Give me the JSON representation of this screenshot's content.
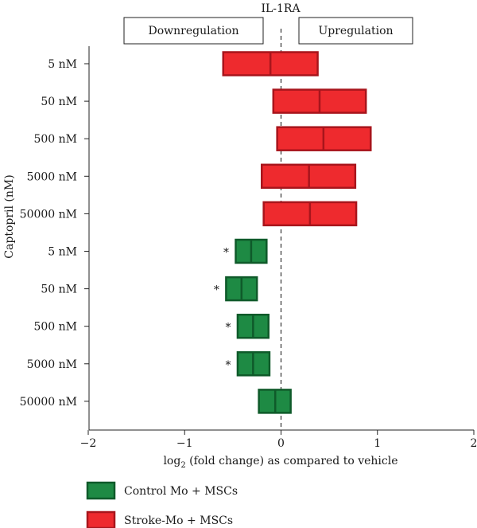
{
  "chart_data": {
    "type": "floating-bar",
    "title": "IL-1RA",
    "xlabel_prefix": "log",
    "xlabel_sub": "2",
    "xlabel_suffix": " (fold change) as compared to vehicle",
    "ylabel": "Captopril (nM)",
    "xlim": [
      -2,
      2
    ],
    "xticks": [
      {
        "value": -2,
        "label": "−2"
      },
      {
        "value": -1,
        "label": "−1"
      },
      {
        "value": 0,
        "label": "0"
      },
      {
        "value": 1,
        "label": "1"
      },
      {
        "value": 2,
        "label": "2"
      }
    ],
    "reference_line": 0,
    "annotation_boxes": [
      {
        "label": "Downregulation",
        "side": "left"
      },
      {
        "label": "Upregulation",
        "side": "right"
      }
    ],
    "colors": {
      "Stroke-Mo + MSCs": {
        "fill": "#ee2a2e",
        "stroke": "#a8151c"
      },
      "Control Mo + MSCs": {
        "fill": "#1e8a44",
        "stroke": "#0f5a2a"
      }
    },
    "rows": [
      {
        "label": "5 nM",
        "series": "Stroke-Mo + MSCs",
        "low": -0.6,
        "mid": -0.11,
        "high": 0.38,
        "significant": false
      },
      {
        "label": "50 nM",
        "series": "Stroke-Mo + MSCs",
        "low": -0.08,
        "mid": 0.4,
        "high": 0.88,
        "significant": false
      },
      {
        "label": "500 nM",
        "series": "Stroke-Mo + MSCs",
        "low": -0.04,
        "mid": 0.44,
        "high": 0.93,
        "significant": false
      },
      {
        "label": "5000 nM",
        "series": "Stroke-Mo + MSCs",
        "low": -0.2,
        "mid": 0.29,
        "high": 0.77,
        "significant": false
      },
      {
        "label": "50000 nM",
        "series": "Stroke-Mo + MSCs",
        "low": -0.18,
        "mid": 0.3,
        "high": 0.78,
        "significant": false
      },
      {
        "label": "5 nM",
        "series": "Control Mo + MSCs",
        "low": -0.47,
        "mid": -0.31,
        "high": -0.15,
        "significant": true,
        "marker": "*"
      },
      {
        "label": "50 nM",
        "series": "Control Mo + MSCs",
        "low": -0.57,
        "mid": -0.41,
        "high": -0.25,
        "significant": true,
        "marker": "*"
      },
      {
        "label": "500 nM",
        "series": "Control Mo + MSCs",
        "low": -0.45,
        "mid": -0.29,
        "high": -0.13,
        "significant": true,
        "marker": "*"
      },
      {
        "label": "5000 nM",
        "series": "Control Mo + MSCs",
        "low": -0.45,
        "mid": -0.29,
        "high": -0.12,
        "significant": true,
        "marker": "*"
      },
      {
        "label": "50000 nM",
        "series": "Control Mo + MSCs",
        "low": -0.23,
        "mid": -0.06,
        "high": 0.1,
        "significant": false
      }
    ],
    "legend": [
      {
        "label": "Control Mo + MSCs",
        "series": "Control Mo + MSCs"
      },
      {
        "label": "Stroke-Mo + MSCs",
        "series": "Stroke-Mo + MSCs"
      }
    ],
    "legend_placement": "bottom-left",
    "grid": false
  }
}
